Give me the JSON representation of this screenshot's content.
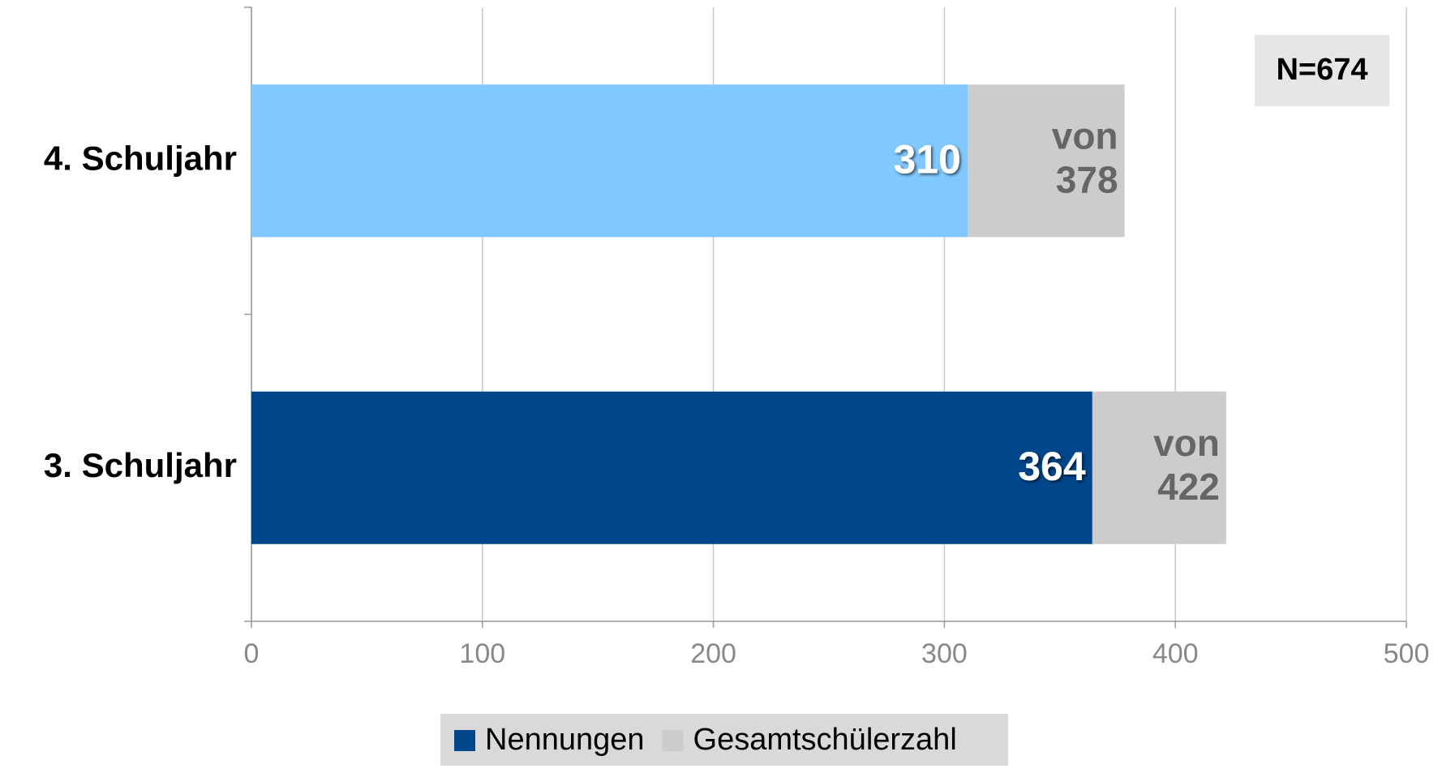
{
  "chart_data": {
    "type": "bar",
    "orientation": "horizontal",
    "overlap": true,
    "annotation": "N=674",
    "categories": [
      "4. Schuljahr",
      "3. Schuljahr"
    ],
    "series": [
      {
        "name": "Gesamtschülerzahl",
        "color": "#cccccc",
        "values": [
          378,
          422
        ],
        "value_labels": [
          "von 378",
          "von 422"
        ]
      },
      {
        "name": "Nennungen",
        "color": "#00468b",
        "colors": [
          "#80c8ff",
          "#00468b"
        ],
        "values": [
          310,
          364
        ]
      }
    ],
    "xlim": [
      0,
      500
    ],
    "xticks": [
      0,
      100,
      200,
      300,
      400,
      500
    ],
    "grid": true,
    "legend": "bottom"
  }
}
